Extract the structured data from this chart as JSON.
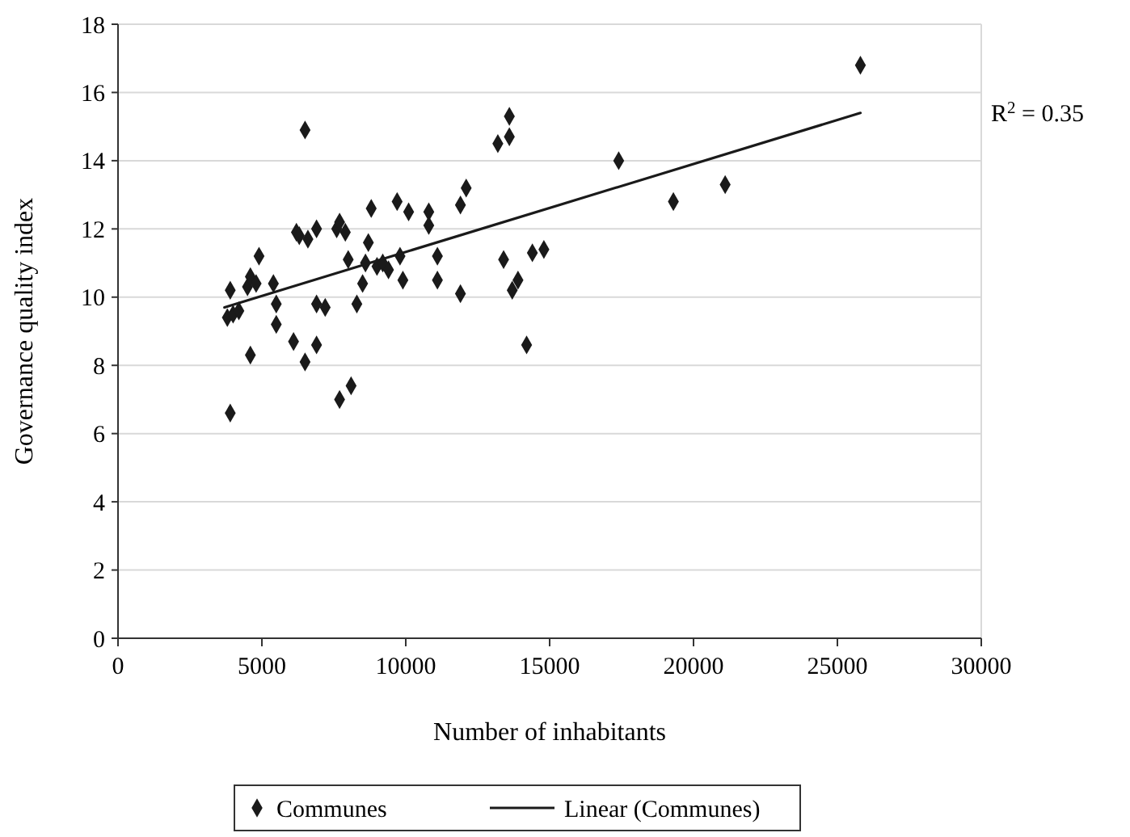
{
  "chart_data": {
    "type": "scatter",
    "xlabel": "Number of inhabitants",
    "ylabel": "Governance quality index",
    "xlim": [
      0,
      30000
    ],
    "xticks": [
      0,
      5000,
      10000,
      15000,
      20000,
      25000,
      30000
    ],
    "ylim": [
      0,
      18
    ],
    "yticks": [
      0,
      2,
      4,
      6,
      8,
      10,
      12,
      14,
      16,
      18
    ],
    "grid": "y",
    "legend": "bottom",
    "marker": "diamond",
    "annotations": [
      "R$^{2}$ = 0.35"
    ],
    "series": [
      {
        "name": "Communes",
        "color": "#1a1a1a",
        "x": [
          3800,
          3900,
          3900,
          4000,
          4200,
          4500,
          4600,
          4600,
          4800,
          4900,
          5400,
          5500,
          5500,
          6100,
          6200,
          6300,
          6500,
          6500,
          6600,
          6900,
          6900,
          6900,
          7200,
          7600,
          7700,
          7700,
          7900,
          8000,
          8100,
          8300,
          8500,
          8600,
          8700,
          8800,
          9000,
          9200,
          9400,
          9700,
          9800,
          9900,
          10100,
          10800,
          10800,
          11100,
          11100,
          11900,
          11900,
          12100,
          13200,
          13400,
          13600,
          13600,
          13700,
          13900,
          14200,
          14400,
          14800,
          17400,
          19300,
          21100,
          25800
        ],
        "values": [
          9.4,
          10.2,
          6.6,
          9.5,
          9.6,
          10.3,
          10.6,
          8.3,
          10.4,
          11.2,
          10.4,
          9.2,
          9.8,
          8.7,
          11.9,
          11.8,
          14.9,
          8.1,
          11.7,
          12.0,
          9.8,
          8.6,
          9.7,
          12.0,
          12.2,
          7.0,
          11.9,
          11.1,
          7.4,
          9.8,
          10.4,
          11.0,
          11.6,
          12.6,
          10.9,
          11.0,
          10.8,
          12.8,
          11.2,
          10.5,
          12.5,
          12.5,
          12.1,
          11.2,
          10.5,
          12.7,
          10.1,
          13.2,
          14.5,
          11.1,
          14.7,
          15.3,
          10.2,
          10.5,
          8.6,
          11.3,
          11.4,
          14.0,
          12.8,
          13.3,
          16.8
        ]
      },
      {
        "name": "Linear (Communes)",
        "type": "line",
        "color": "#1a1a1a",
        "marker": "none",
        "line_style": "solid",
        "x": [
          3700,
          25800
        ],
        "values": [
          9.7,
          15.4
        ]
      }
    ]
  }
}
